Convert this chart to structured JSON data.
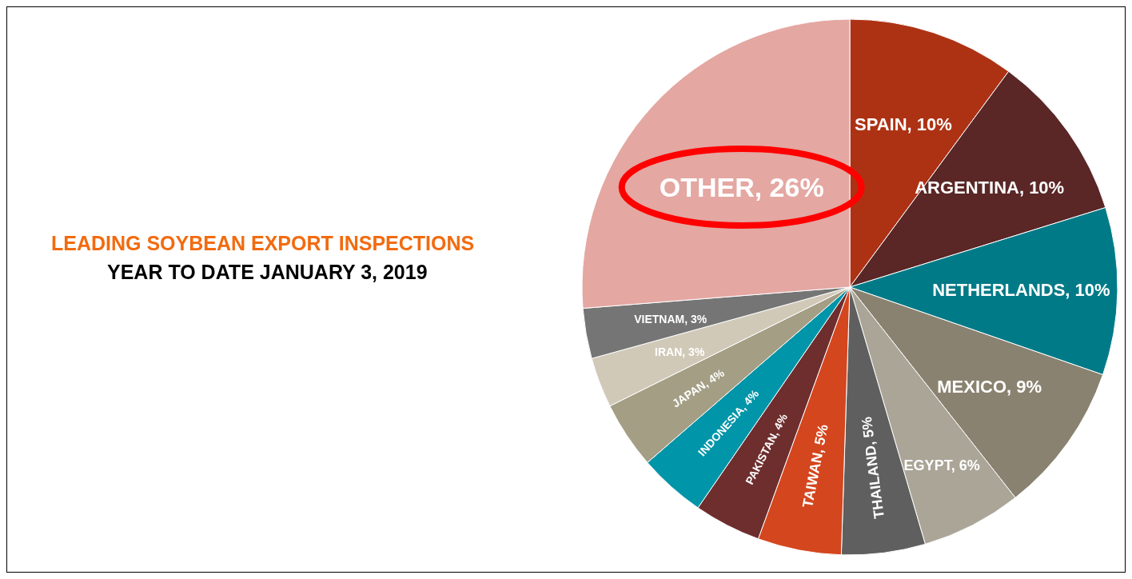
{
  "chart_data": {
    "type": "pie",
    "title": "LEADING SOYBEAN EXPORT INSPECTIONS",
    "subtitle": "YEAR TO DATE JANUARY 3, 2019",
    "categories": [
      "SPAIN",
      "ARGENTINA",
      "NETHERLANDS",
      "MEXICO",
      "EGYPT",
      "THAILAND",
      "TAIWAN",
      "PAKISTAN",
      "INDONESIA",
      "JAPAN",
      "IRAN",
      "VIETNAM",
      "OTHER"
    ],
    "values": [
      10,
      10,
      10,
      9,
      6,
      5,
      5,
      4,
      4,
      4,
      3,
      3,
      26
    ],
    "value_labels": [
      "10%",
      "10%",
      "10%",
      "9%",
      "6%",
      "5%",
      "5%",
      "4%",
      "4%",
      "4%",
      "3%",
      "3%",
      "26%"
    ],
    "colors": [
      "#ad3214",
      "#5a2626",
      "#007a87",
      "#8a8270",
      "#aba598",
      "#5f5f5f",
      "#d4461e",
      "#6e2e2e",
      "#0095a8",
      "#a49e85",
      "#d1c9b8",
      "#757575",
      "#e4a7a2"
    ]
  }
}
